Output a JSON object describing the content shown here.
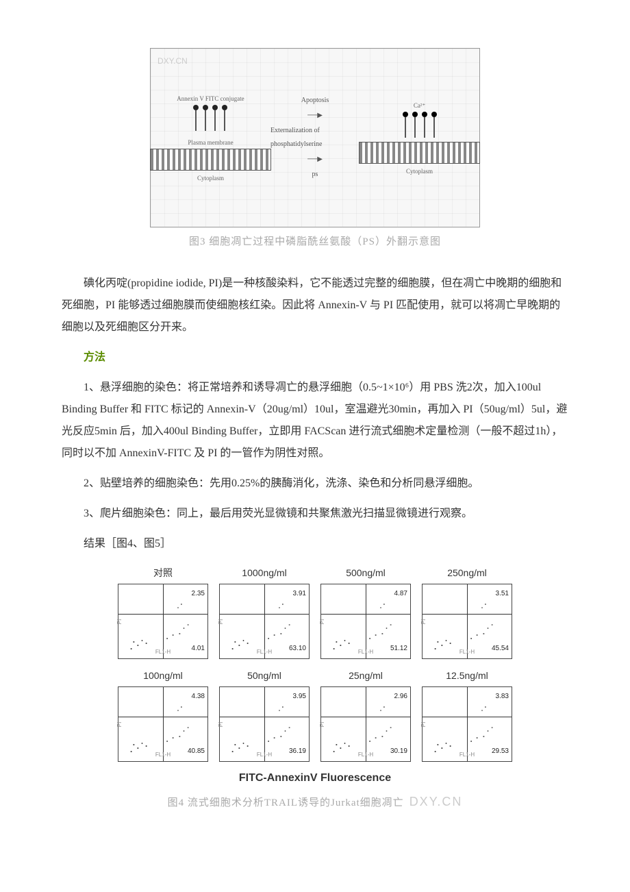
{
  "figure3": {
    "watermark": "DXY.CN",
    "left_top_label": "Annexin V FITC conjugate",
    "left_bottom_label": "Plasma membrane",
    "cytoplasm_label": "Cytoplasm",
    "arrow_top": "Apoptosis",
    "arrow_mid": "Externalization of phosphatidylserine",
    "ps_label": "ps",
    "ca_label": "Ca²⁺",
    "caption": "图3 细胞凋亡过程中磷脂酰丝氨酸（PS）外翻示意图"
  },
  "para1": "碘化丙啶(propidine iodide, PI)是一种核酸染料，它不能透过完整的细胞膜，但在凋亡中晚期的细胞和死细胞，PI 能够透过细胞膜而使细胞核红染。因此将 Annexin-V 与 PI 匹配使用，就可以将凋亡早晚期的细胞以及死细胞区分开来。",
  "section_methods": "方法",
  "para2": "1、悬浮细胞的染色：将正常培养和诱导凋亡的悬浮细胞（0.5~1×10⁶）用 PBS 洗2次，加入100ul Binding Buffer 和 FITC 标记的 Annexin-V（20ug/ml）10ul，室温避光30min，再加入 PI（50ug/ml）5ul，避光反应5min 后，加入400ul Binding Buffer，立即用 FACScan 进行流式细胞术定量检测（一般不超过1h），同时以不加 AnnexinV-FITC 及 PI 的一管作为阴性对照。",
  "para3": "2、贴壁培养的细胞染色：先用0.25%的胰酶消化，洗涤、染色和分析同悬浮细胞。",
  "para4": "3、爬片细胞染色：同上，最后用荧光显微镜和共聚焦激光扫描显微镜进行观察。",
  "para5": "结果［图4、图5］",
  "figure4": {
    "xaxis_title": "FITC-AnnexinV Fluorescence",
    "caption": "图4 流式细胞术分析TRAIL诱导的Jurkat细胞凋亡",
    "watermark_tail": "DXY.CN",
    "ylabel": "PI",
    "xlabel": "FL1-H",
    "panels": [
      {
        "title": "对照",
        "ur": "2.35",
        "lr": "4.01"
      },
      {
        "title": "1000ng/ml",
        "ur": "3.91",
        "lr": "63.10"
      },
      {
        "title": "500ng/ml",
        "ur": "4.87",
        "lr": "51.12"
      },
      {
        "title": "250ng/ml",
        "ur": "3.51",
        "lr": "45.54"
      },
      {
        "title": "100ng/ml",
        "ur": "4.38",
        "lr": "40.85"
      },
      {
        "title": "50ng/ml",
        "ur": "3.95",
        "lr": "36.19"
      },
      {
        "title": "25ng/ml",
        "ur": "2.96",
        "lr": "30.19"
      },
      {
        "title": "12.5ng/ml",
        "ur": "3.83",
        "lr": "29.53"
      }
    ]
  }
}
